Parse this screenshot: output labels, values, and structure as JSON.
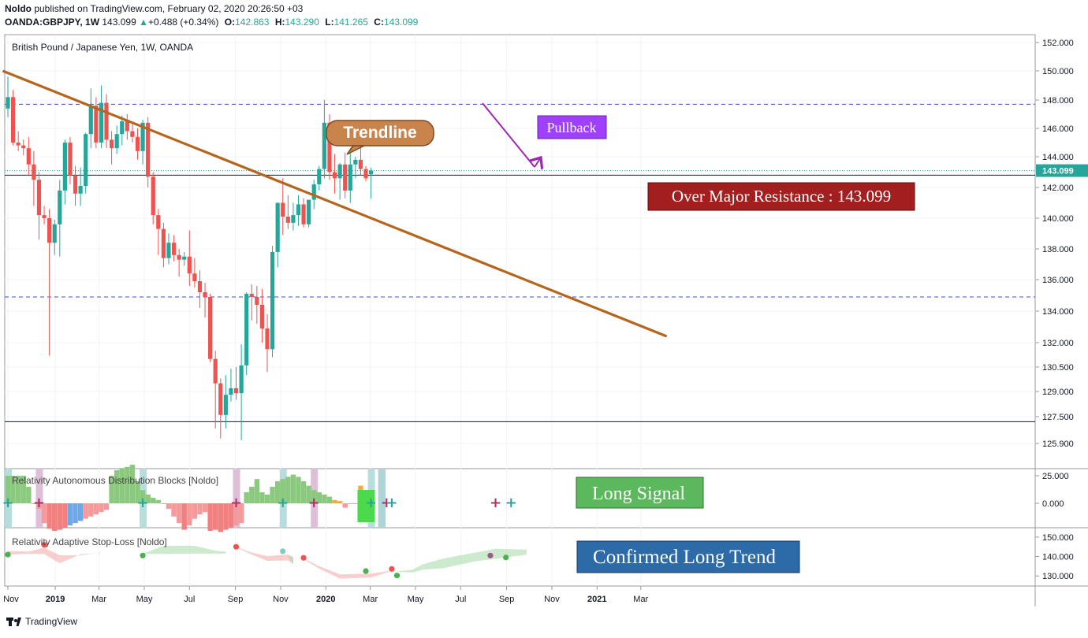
{
  "header": {
    "publisher": "Noldo",
    "published_text": " published on TradingView.com, February 02, 2020 20:26:50 +03",
    "symbol": "OANDA:GBPJPY, 1W",
    "last": "143.099",
    "change": "+0.488 (+0.34%)",
    "open_label": "O:",
    "open": "142.863",
    "high_label": "H:",
    "high": "143.290",
    "low_label": "L:",
    "low": "141.265",
    "close_label": "C:",
    "close": "143.099"
  },
  "legend": "British Pound / Japanese Yen, 1W, OANDA",
  "annotations": {
    "trendline": "Trendline",
    "pullback": "Pullback",
    "resistance": "Over Major Resistance : 143.099",
    "long_signal": "Long Signal",
    "confirmed": "Confirmed Long Trend"
  },
  "indicators": {
    "radb": "Relativity Autonomous Distribution Blocks [Noldo]",
    "rasl": "Relativity Adaptive Stop-Loss [Noldo]"
  },
  "footer": {
    "brand": "TradingView"
  },
  "colors": {
    "up": "#26a69a",
    "down": "#ef5350",
    "trendline": "#b5651d",
    "pullback": "#9c27b0",
    "resistance_box": "#a31f1f",
    "long_signal_box": "#5cb85c",
    "confirmed_box": "#2d6aa8"
  },
  "chart_data": {
    "type": "candlestick",
    "price_axis": {
      "ticks": [
        "152.000",
        "150.000",
        "148.000",
        "146.000",
        "144.000",
        "143.099",
        "142.000",
        "140.000",
        "138.000",
        "136.000",
        "134.000",
        "132.000",
        "130.500",
        "129.000",
        "127.500",
        "125.900"
      ],
      "range": [
        125.0,
        152.5
      ]
    },
    "time_axis": {
      "ticks": [
        "Nov",
        "2019",
        "Mar",
        "May",
        "Jul",
        "Sep",
        "Nov",
        "2020",
        "Mar",
        "May",
        "Jul",
        "Sep",
        "Nov",
        "2021",
        "Mar"
      ],
      "start": "2018-10-29",
      "interval": "1W"
    },
    "candles": [
      [
        147.4,
        149.6,
        146.8,
        148.2
      ],
      [
        148.2,
        148.7,
        144.8,
        145.0
      ],
      [
        145.0,
        145.8,
        144.4,
        144.8
      ],
      [
        144.8,
        145.2,
        144.1,
        144.6
      ],
      [
        144.6,
        145.4,
        142.8,
        143.5
      ],
      [
        143.5,
        144.4,
        140.8,
        142.5
      ],
      [
        142.5,
        143.0,
        138.6,
        140.2
      ],
      [
        140.2,
        140.8,
        139.6,
        140.0
      ],
      [
        140.0,
        140.6,
        131.2,
        138.4
      ],
      [
        138.4,
        139.9,
        137.6,
        139.6
      ],
      [
        139.6,
        142.5,
        137.5,
        141.8
      ],
      [
        141.8,
        145.2,
        140.9,
        145.0
      ],
      [
        145.0,
        145.4,
        142.2,
        142.8
      ],
      [
        142.8,
        143.4,
        140.8,
        141.6
      ],
      [
        141.6,
        143.3,
        140.8,
        142.1
      ],
      [
        142.1,
        145.7,
        141.6,
        145.6
      ],
      [
        145.6,
        148.8,
        144.6,
        147.6
      ],
      [
        147.6,
        148.2,
        144.6,
        145.0
      ],
      [
        145.0,
        149.0,
        144.6,
        147.8
      ],
      [
        147.8,
        148.4,
        144.6,
        145.2
      ],
      [
        145.2,
        145.8,
        143.5,
        144.6
      ],
      [
        144.6,
        146.2,
        144.2,
        145.6
      ],
      [
        145.6,
        146.9,
        144.8,
        146.5
      ],
      [
        146.5,
        147.0,
        145.2,
        145.8
      ],
      [
        145.8,
        146.3,
        145.0,
        145.4
      ],
      [
        145.4,
        146.0,
        143.8,
        144.4
      ],
      [
        144.4,
        146.6,
        143.5,
        146.4
      ],
      [
        146.4,
        146.8,
        142.0,
        142.7
      ],
      [
        142.7,
        143.0,
        139.6,
        140.2
      ],
      [
        140.2,
        140.6,
        137.6,
        139.3
      ],
      [
        139.3,
        139.7,
        136.8,
        137.4
      ],
      [
        137.4,
        139.0,
        137.0,
        138.4
      ],
      [
        138.4,
        138.9,
        137.2,
        137.6
      ],
      [
        137.6,
        138.0,
        136.2,
        137.3
      ],
      [
        137.3,
        137.8,
        136.9,
        137.5
      ],
      [
        137.5,
        139.2,
        135.6,
        136.4
      ],
      [
        136.4,
        137.4,
        135.5,
        135.9
      ],
      [
        135.9,
        136.6,
        134.2,
        135.2
      ],
      [
        135.2,
        135.8,
        133.6,
        134.9
      ],
      [
        134.9,
        135.1,
        130.8,
        131.0
      ],
      [
        131.0,
        131.5,
        126.8,
        129.5
      ],
      [
        129.5,
        129.8,
        126.2,
        127.6
      ],
      [
        127.6,
        130.0,
        126.8,
        128.8
      ],
      [
        128.8,
        130.4,
        128.4,
        129.2
      ],
      [
        129.2,
        130.5,
        128.5,
        128.9
      ],
      [
        128.9,
        131.9,
        126.1,
        130.6
      ],
      [
        130.6,
        135.2,
        130.0,
        135.1
      ],
      [
        135.1,
        135.7,
        133.4,
        134.9
      ],
      [
        134.9,
        135.6,
        133.2,
        134.4
      ],
      [
        134.4,
        135.4,
        132.0,
        132.9
      ],
      [
        132.9,
        133.8,
        130.2,
        131.6
      ],
      [
        131.6,
        138.2,
        131.1,
        137.8
      ],
      [
        137.8,
        141.0,
        136.8,
        141.0
      ],
      [
        141.0,
        142.6,
        138.9,
        140.1
      ],
      [
        140.1,
        141.5,
        139.3,
        139.7
      ],
      [
        139.7,
        141.0,
        139.2,
        140.2
      ],
      [
        140.2,
        141.5,
        139.5,
        140.9
      ],
      [
        140.9,
        141.3,
        139.4,
        139.6
      ],
      [
        139.6,
        141.0,
        139.4,
        141.2
      ],
      [
        141.2,
        142.5,
        140.6,
        142.2
      ],
      [
        142.2,
        143.4,
        141.8,
        143.2
      ],
      [
        143.2,
        148.0,
        142.6,
        146.4
      ],
      [
        146.4,
        147.0,
        142.5,
        143.0
      ],
      [
        143.0,
        144.2,
        141.6,
        142.6
      ],
      [
        142.6,
        143.6,
        141.2,
        143.5
      ],
      [
        143.5,
        144.3,
        141.3,
        141.8
      ],
      [
        141.8,
        144.6,
        141.0,
        143.5
      ],
      [
        143.5,
        144.0,
        142.6,
        143.8
      ],
      [
        143.8,
        144.8,
        142.8,
        143.2
      ],
      [
        143.2,
        143.4,
        142.4,
        142.6
      ],
      [
        142.863,
        143.29,
        141.265,
        143.099
      ]
    ],
    "trendline": {
      "from": [
        "2018-10-22",
        150.0
      ],
      "to": [
        "2021-04-05",
        132.4
      ]
    },
    "horizontal_lines": {
      "dashed_blue": [
        147.7,
        134.9
      ],
      "solid_black": [
        142.8,
        127.2
      ],
      "last_price": 143.099
    },
    "radb_series": [
      25,
      25,
      25,
      25,
      15,
      0,
      -5,
      -18,
      -23,
      -25,
      -24,
      -22,
      -20,
      -18,
      -16,
      -14,
      -12,
      -10,
      -8,
      -6,
      25,
      30,
      32,
      33,
      35,
      20,
      12,
      8,
      5,
      3,
      0,
      -5,
      -12,
      -18,
      -24,
      -20,
      -14,
      -10,
      -8,
      -25,
      -24,
      -26,
      -24,
      -22,
      -20,
      -18,
      10,
      15,
      22,
      10,
      8,
      15,
      20,
      22,
      24,
      26,
      24,
      20,
      16,
      12,
      10,
      8,
      6,
      3,
      2,
      -4,
      0,
      0,
      16,
      10,
      8
    ],
    "radb_axis": {
      "ticks": [
        "25.000",
        "0.000"
      ],
      "range": [
        -35,
        40
      ]
    },
    "rasl_axis": {
      "ticks": [
        "150.000",
        "140.000",
        "130.000"
      ],
      "range": [
        124,
        154
      ]
    }
  }
}
